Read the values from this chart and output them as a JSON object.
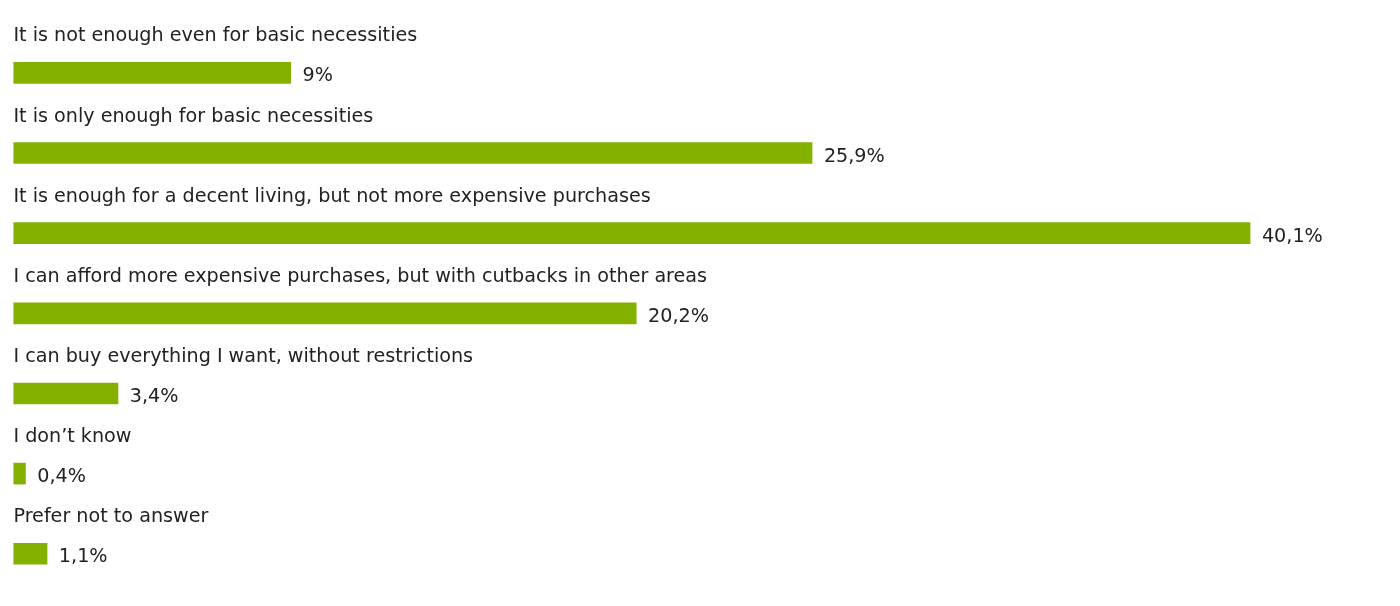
{
  "chart_data": {
    "type": "bar",
    "orientation": "horizontal",
    "categories": [
      "It is not enough even for basic necessities",
      "It is only enough for basic necessities",
      "It is enough for a decent living, but not more expensive purchases",
      "I can afford more expensive purchases, but with cutbacks in other areas",
      "I can buy everything I want, without restrictions",
      "I don’t know",
      "Prefer not to answer"
    ],
    "values": [
      9,
      25.9,
      40.1,
      20.2,
      3.4,
      0.4,
      1.1
    ],
    "value_labels": [
      "9%",
      "25,9%",
      "40,1%",
      "20,2%",
      "3,4%",
      "0,4%",
      "1,1%"
    ],
    "color": "#84b000"
  }
}
